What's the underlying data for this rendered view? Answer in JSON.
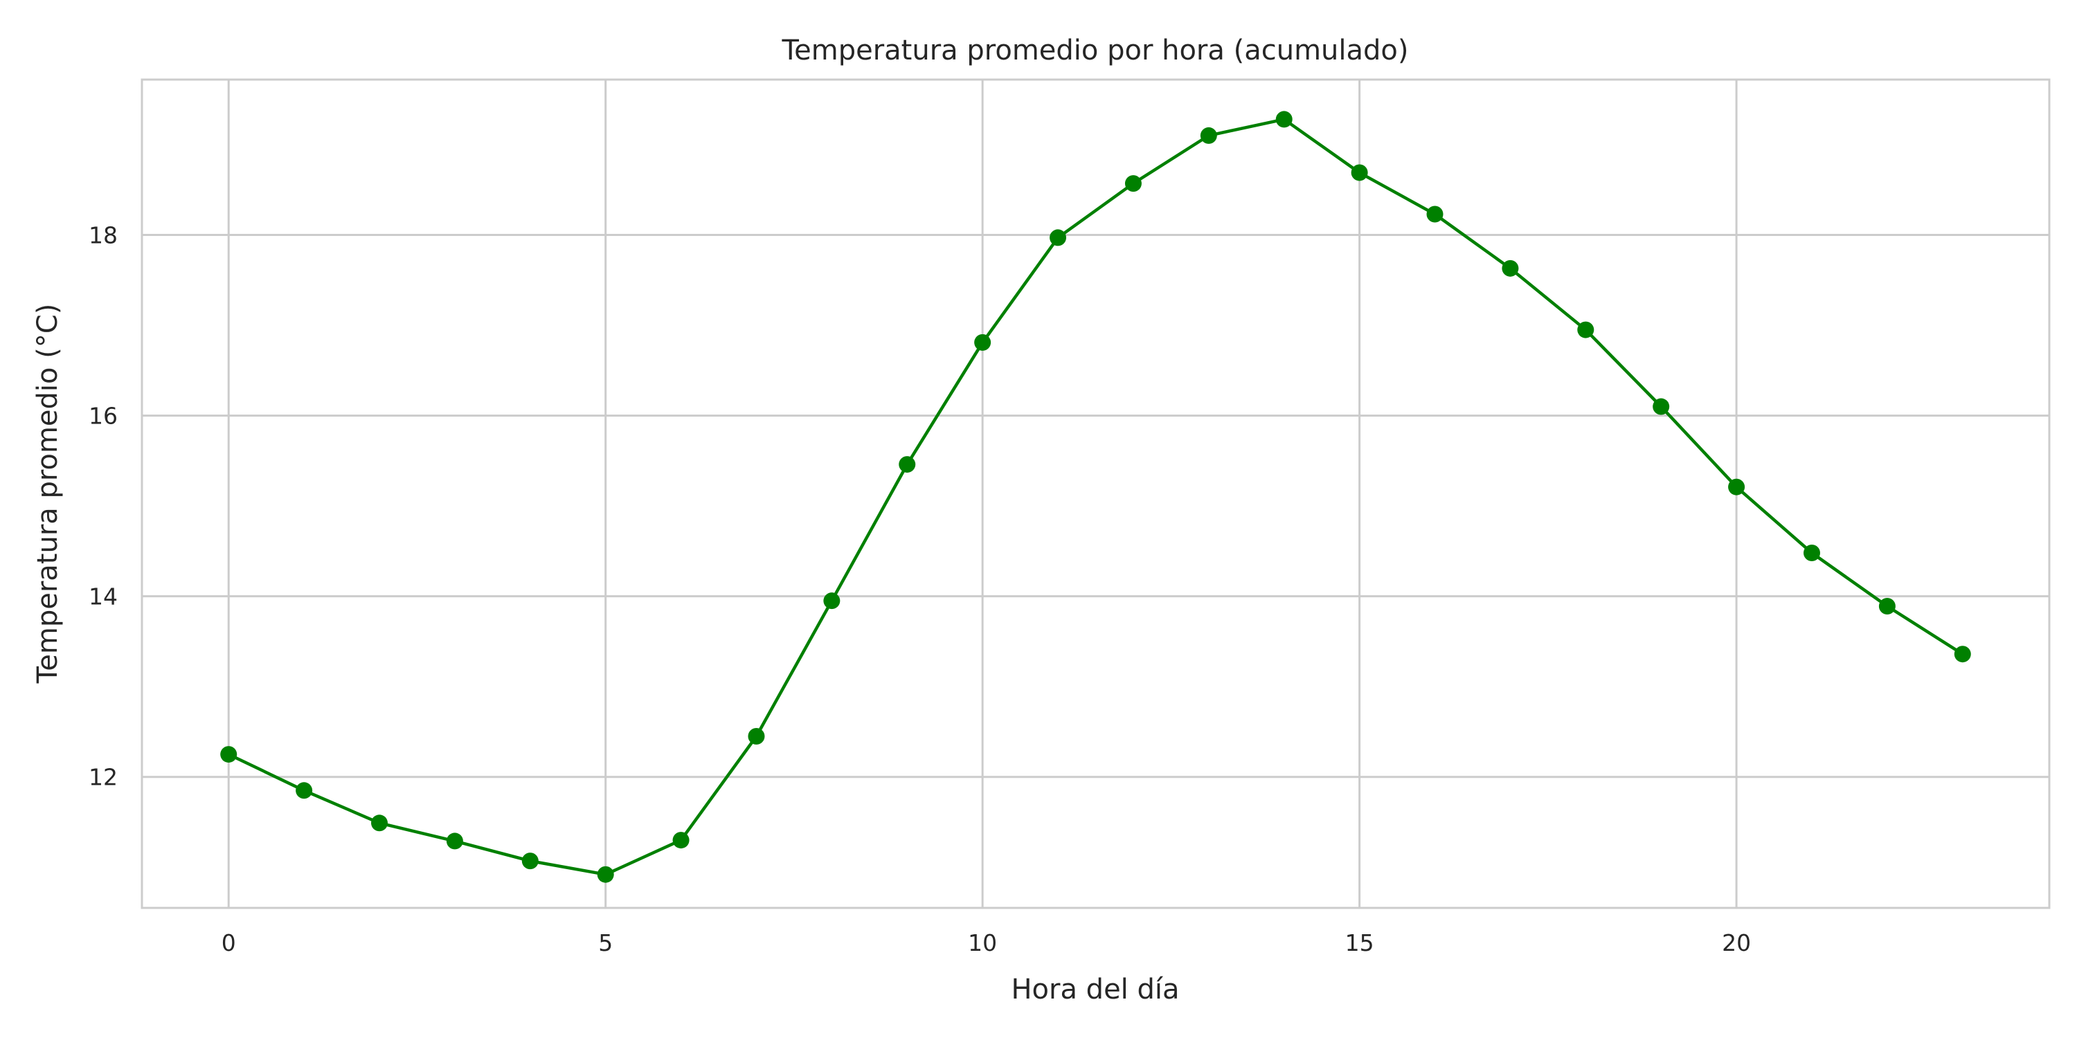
{
  "chart_data": {
    "type": "line",
    "title": "Temperatura promedio por hora (acumulado)",
    "xlabel": "Hora del día",
    "ylabel": "Temperatura promedio (°C)",
    "xlim": [
      -1.15,
      24.15
    ],
    "ylim": [
      10.55,
      19.72
    ],
    "xticks": [
      0,
      5,
      10,
      15,
      20
    ],
    "yticks": [
      12,
      14,
      16,
      18
    ],
    "grid": true,
    "legend": "none",
    "series": [
      {
        "color": "#008000",
        "marker": "circle",
        "x": [
          0,
          1,
          2,
          3,
          4,
          5,
          6,
          7,
          8,
          9,
          10,
          11,
          12,
          13,
          14,
          15,
          16,
          17,
          18,
          19,
          20,
          21,
          22,
          23
        ],
        "y": [
          12.25,
          11.85,
          11.49,
          11.29,
          11.07,
          10.92,
          11.3,
          12.45,
          13.95,
          15.46,
          16.81,
          17.97,
          18.57,
          19.1,
          19.28,
          18.69,
          18.23,
          17.63,
          16.95,
          16.1,
          15.21,
          14.48,
          13.89,
          13.36
        ]
      }
    ]
  }
}
